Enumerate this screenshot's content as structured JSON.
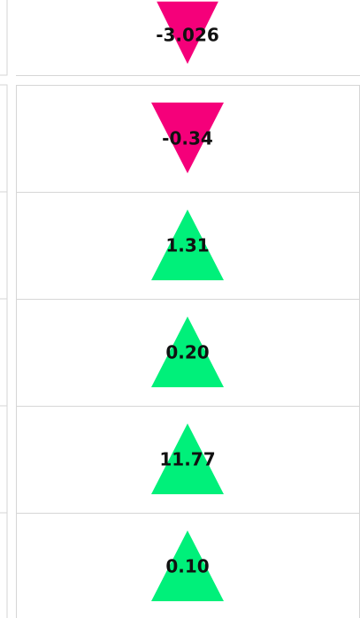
{
  "cells": [
    {
      "value": "-3.026"
    },
    {
      "value": "-0.34"
    },
    {
      "value": "1.31"
    },
    {
      "value": "0.20"
    },
    {
      "value": "11.77"
    },
    {
      "value": "0.10"
    }
  ],
  "up_color": "#00f07a",
  "down_color": "#f5007a"
}
